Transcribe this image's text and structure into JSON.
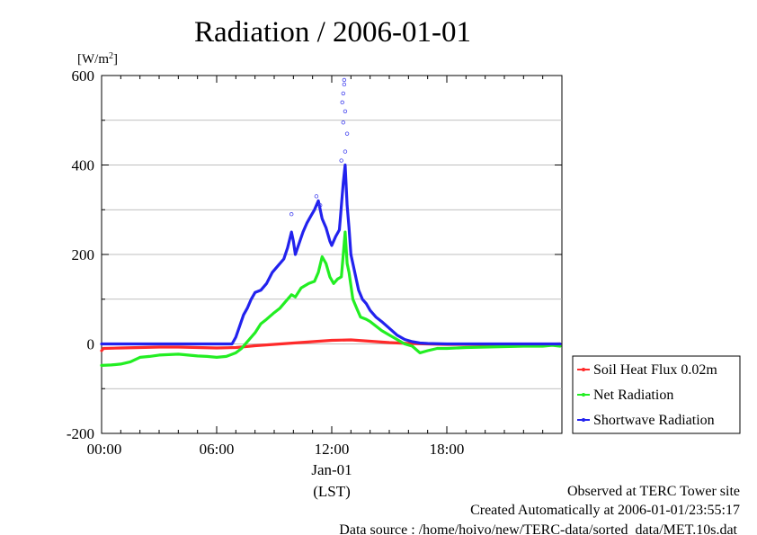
{
  "chart_data": {
    "type": "line",
    "title": "Radiation / 2006-01-01",
    "ylabel": "[W/m2]",
    "xlabel": "(LST)",
    "x_date_label": "Jan-01",
    "ylim": [
      -200,
      600
    ],
    "xlim": [
      "00:00",
      "24:00"
    ],
    "x_ticks": [
      "00:00",
      "06:00",
      "12:00",
      "18:00"
    ],
    "y_ticks": [
      -200,
      0,
      200,
      400,
      600
    ],
    "grid": true,
    "legend_placement": "right",
    "series": [
      {
        "name": "Soil Heat Flux 0.02m",
        "color": "#ff2a2a",
        "x": [
          0.0,
          0.1,
          1,
          2,
          3,
          4,
          5,
          6,
          7,
          8,
          9,
          10,
          11,
          12,
          13,
          14,
          15,
          16,
          17,
          18,
          19,
          20,
          21,
          22,
          23,
          23.9
        ],
        "values": [
          -15,
          -10,
          -9,
          -8,
          -7,
          -7,
          -8,
          -9,
          -8,
          -4,
          -1,
          2,
          5,
          8,
          9,
          6,
          3,
          1,
          0,
          -1,
          -1,
          -1,
          -1,
          -1,
          -1,
          0
        ]
      },
      {
        "name": "Net Radiation",
        "color": "#22ee22",
        "x": [
          0.0,
          0.5,
          1.0,
          1.5,
          2.0,
          2.5,
          3.0,
          3.5,
          4.0,
          4.5,
          5.0,
          5.5,
          6.0,
          6.5,
          7.0,
          7.3,
          7.6,
          8.0,
          8.3,
          8.6,
          9.0,
          9.3,
          9.6,
          9.9,
          10.1,
          10.4,
          10.8,
          11.1,
          11.3,
          11.5,
          11.7,
          11.9,
          12.1,
          12.3,
          12.5,
          12.6,
          12.7,
          12.8,
          12.9,
          13.1,
          13.3,
          13.5,
          13.8,
          14.0,
          14.3,
          14.6,
          15.0,
          15.4,
          15.8,
          16.2,
          16.6,
          17.0,
          17.5,
          18.0,
          19.0,
          20.0,
          21.0,
          22.0,
          23.0,
          23.5,
          23.9
        ],
        "values": [
          -48,
          -47,
          -45,
          -40,
          -30,
          -28,
          -25,
          -24,
          -23,
          -25,
          -27,
          -28,
          -30,
          -28,
          -20,
          -10,
          5,
          25,
          45,
          55,
          70,
          80,
          95,
          110,
          105,
          125,
          135,
          140,
          160,
          195,
          180,
          150,
          135,
          145,
          150,
          200,
          250,
          180,
          160,
          100,
          80,
          60,
          55,
          50,
          40,
          30,
          20,
          10,
          0,
          -5,
          -20,
          -15,
          -10,
          -10,
          -8,
          -7,
          -6,
          -5,
          -5,
          -3,
          -5
        ]
      },
      {
        "name": "Shortwave Radiation",
        "color": "#2222ee",
        "x": [
          0.0,
          1.0,
          2.0,
          3.0,
          4.0,
          5.0,
          6.0,
          6.5,
          6.8,
          7.0,
          7.2,
          7.4,
          7.6,
          7.8,
          8.0,
          8.3,
          8.6,
          8.9,
          9.2,
          9.5,
          9.7,
          9.9,
          10.0,
          10.1,
          10.3,
          10.5,
          10.7,
          10.9,
          11.1,
          11.3,
          11.5,
          11.7,
          11.9,
          12.0,
          12.2,
          12.4,
          12.6,
          12.7,
          12.8,
          12.9,
          13.0,
          13.2,
          13.4,
          13.6,
          13.8,
          14.0,
          14.3,
          14.6,
          15.0,
          15.4,
          15.8,
          16.2,
          16.6,
          17.0,
          18.0,
          19.0,
          20.0,
          21.0,
          22.0,
          23.0,
          23.9
        ],
        "values": [
          0,
          0,
          0,
          0,
          0,
          0,
          0,
          0,
          0,
          15,
          40,
          65,
          80,
          100,
          115,
          120,
          135,
          160,
          175,
          190,
          215,
          250,
          230,
          200,
          225,
          250,
          270,
          285,
          300,
          320,
          280,
          260,
          230,
          220,
          240,
          255,
          360,
          400,
          310,
          260,
          200,
          160,
          120,
          100,
          90,
          75,
          60,
          50,
          35,
          20,
          10,
          5,
          2,
          1,
          0,
          0,
          0,
          0,
          0,
          0,
          0
        ]
      }
    ],
    "outliers_shortwave": [
      [
        12.65,
        590
      ],
      [
        12.65,
        580
      ],
      [
        12.6,
        560
      ],
      [
        12.7,
        520
      ],
      [
        12.6,
        495
      ],
      [
        12.7,
        430
      ],
      [
        12.5,
        410
      ],
      [
        11.2,
        330
      ],
      [
        9.9,
        290
      ],
      [
        11.4,
        310
      ],
      [
        12.8,
        470
      ],
      [
        12.55,
        540
      ]
    ]
  },
  "labels": {
    "legend_items": [
      "Soil Heat Flux 0.02m",
      "Net Radiation",
      "Shortwave Radiation"
    ],
    "footer": [
      "Observed at TERC Tower site",
      "Created Automatically at 2006-01-01/23:55:17",
      "Data source : /home/hoivo/new/TERC-data/sorted_data/MET.10s.dat"
    ]
  }
}
